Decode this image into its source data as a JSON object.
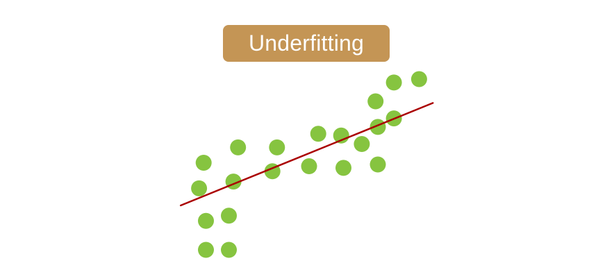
{
  "title": "Underfitting",
  "colors": {
    "title_bg": "#c49555",
    "title_text": "#ffffff",
    "point": "#86c440",
    "fit_line": "#aa0000",
    "background": "#ffffff"
  },
  "chart_data": {
    "type": "scatter",
    "description_note": "",
    "points": [
      {
        "x": 0.05,
        "y": 0.0
      },
      {
        "x": 0.05,
        "y": 0.17
      },
      {
        "x": 0.02,
        "y": 0.36
      },
      {
        "x": 0.04,
        "y": 0.51
      },
      {
        "x": 0.15,
        "y": 0.0
      },
      {
        "x": 0.15,
        "y": 0.2
      },
      {
        "x": 0.17,
        "y": 0.4
      },
      {
        "x": 0.19,
        "y": 0.6
      },
      {
        "x": 0.34,
        "y": 0.46
      },
      {
        "x": 0.36,
        "y": 0.6
      },
      {
        "x": 0.5,
        "y": 0.49
      },
      {
        "x": 0.54,
        "y": 0.68
      },
      {
        "x": 0.65,
        "y": 0.48
      },
      {
        "x": 0.64,
        "y": 0.67
      },
      {
        "x": 0.73,
        "y": 0.62
      },
      {
        "x": 0.8,
        "y": 0.5
      },
      {
        "x": 0.8,
        "y": 0.72
      },
      {
        "x": 0.79,
        "y": 0.87
      },
      {
        "x": 0.87,
        "y": 0.77
      },
      {
        "x": 0.87,
        "y": 0.98
      },
      {
        "x": 0.98,
        "y": 1.0
      }
    ],
    "fit_line": {
      "x": [
        -0.06,
        1.04
      ],
      "y": [
        0.26,
        0.86
      ]
    }
  }
}
